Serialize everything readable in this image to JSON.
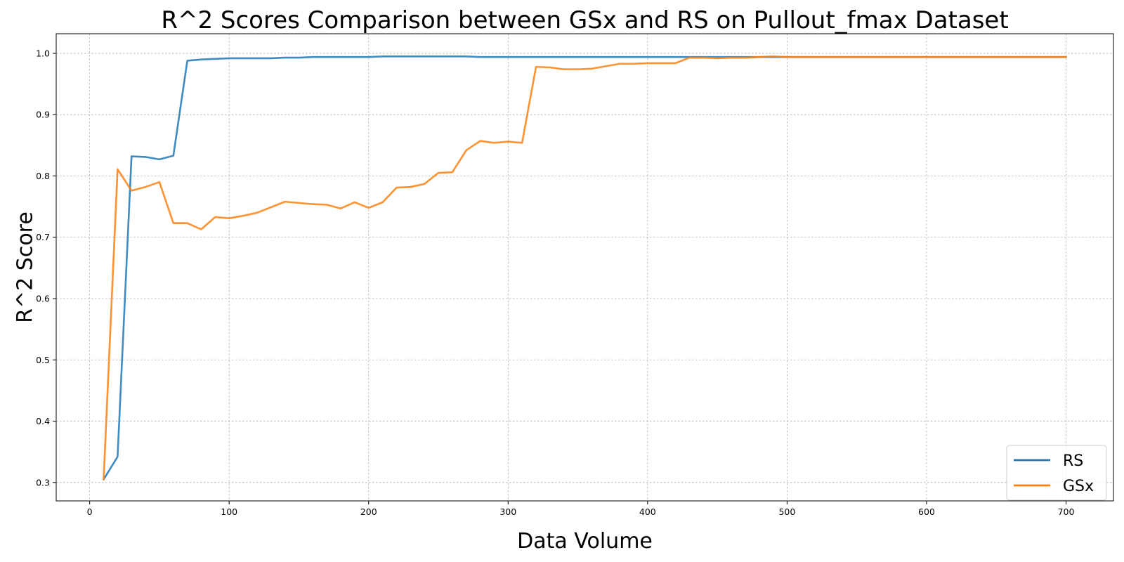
{
  "chart_data": {
    "type": "line",
    "title": "R^2 Scores Comparison between GSx and RS on Pullout_fmax Dataset",
    "xlabel": "Data Volume",
    "ylabel": "R^2 Score",
    "xlim": [
      -24,
      734
    ],
    "ylim": [
      0.27,
      1.032
    ],
    "xticks": [
      0,
      100,
      200,
      300,
      400,
      500,
      600,
      700
    ],
    "yticks": [
      0.3,
      0.4,
      0.5,
      0.6,
      0.7,
      0.8,
      0.9,
      1.0
    ],
    "xtick_labels": [
      "0",
      "100",
      "200",
      "300",
      "400",
      "500",
      "600",
      "700"
    ],
    "ytick_labels": [
      "0.3",
      "0.4",
      "0.5",
      "0.6",
      "0.7",
      "0.8",
      "0.9",
      "1.0"
    ],
    "grid": true,
    "legend_position": "lower-right",
    "x": [
      10,
      20,
      30,
      40,
      50,
      60,
      70,
      80,
      90,
      100,
      110,
      120,
      130,
      140,
      150,
      160,
      170,
      180,
      190,
      200,
      210,
      220,
      230,
      240,
      250,
      260,
      270,
      280,
      290,
      300,
      310,
      320,
      330,
      340,
      350,
      360,
      370,
      380,
      390,
      400,
      410,
      420,
      430,
      440,
      450,
      460,
      470,
      480,
      490,
      500,
      510,
      520,
      530,
      540,
      550,
      560,
      570,
      580,
      590,
      600,
      610,
      620,
      630,
      640,
      650,
      660,
      670,
      680,
      690,
      700
    ],
    "series": [
      {
        "name": "RS",
        "color": "#1f77b4",
        "values": [
          0.305,
          0.342,
          0.832,
          0.831,
          0.827,
          0.833,
          0.988,
          0.99,
          0.991,
          0.992,
          0.992,
          0.992,
          0.992,
          0.993,
          0.993,
          0.994,
          0.994,
          0.994,
          0.994,
          0.994,
          0.995,
          0.995,
          0.995,
          0.995,
          0.995,
          0.995,
          0.995,
          0.994,
          0.994,
          0.994,
          0.994,
          0.994,
          0.994,
          0.994,
          0.994,
          0.994,
          0.994,
          0.994,
          0.994,
          0.994,
          0.994,
          0.994,
          0.994,
          0.994,
          0.994,
          0.994,
          0.994,
          0.994,
          0.994,
          0.994,
          0.994,
          0.994,
          0.994,
          0.994,
          0.994,
          0.994,
          0.994,
          0.994,
          0.994,
          0.994,
          0.994,
          0.994,
          0.994,
          0.994,
          0.994,
          0.994,
          0.994,
          0.994,
          0.994,
          0.994
        ]
      },
      {
        "name": "GSx",
        "color": "#ff7f0e",
        "values": [
          0.305,
          0.811,
          0.776,
          0.782,
          0.79,
          0.723,
          0.723,
          0.713,
          0.733,
          0.731,
          0.735,
          0.74,
          0.749,
          0.758,
          0.756,
          0.754,
          0.753,
          0.747,
          0.757,
          0.748,
          0.757,
          0.781,
          0.782,
          0.787,
          0.805,
          0.806,
          0.842,
          0.857,
          0.854,
          0.856,
          0.854,
          0.978,
          0.977,
          0.974,
          0.974,
          0.975,
          0.979,
          0.983,
          0.983,
          0.984,
          0.984,
          0.984,
          0.993,
          0.993,
          0.992,
          0.993,
          0.993,
          0.994,
          0.995,
          0.994,
          0.994,
          0.994,
          0.994,
          0.994,
          0.994,
          0.994,
          0.994,
          0.994,
          0.994,
          0.994,
          0.994,
          0.994,
          0.994,
          0.994,
          0.994,
          0.994,
          0.994,
          0.994,
          0.994,
          0.994
        ]
      }
    ]
  }
}
